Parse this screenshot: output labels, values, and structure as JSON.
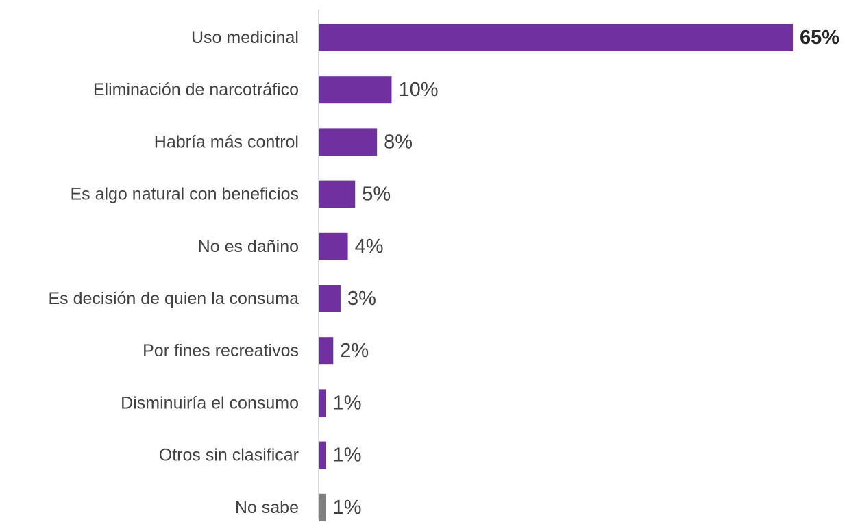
{
  "chart_data": {
    "type": "bar",
    "orientation": "horizontal",
    "categories": [
      "Uso medicinal",
      "Eliminación de narcotráfico",
      "Habría más control",
      "Es algo natural con beneficios",
      "No es dañino",
      "Es decisión de quien la consuma",
      "Por fines recreativos",
      "Disminuiría el consumo",
      "Otros sin clasificar",
      "No sabe"
    ],
    "values": [
      65,
      10,
      8,
      5,
      4,
      3,
      2,
      1,
      1,
      1
    ],
    "value_labels": [
      "65%",
      "10%",
      "8%",
      "5%",
      "4%",
      "3%",
      "2%",
      "1%",
      "1%",
      "1%"
    ],
    "bar_colors": [
      "#7030a0",
      "#7030a0",
      "#7030a0",
      "#7030a0",
      "#7030a0",
      "#7030a0",
      "#7030a0",
      "#7030a0",
      "#7030a0",
      "#808080"
    ],
    "bold_value_labels": [
      true,
      false,
      false,
      false,
      false,
      false,
      false,
      false,
      false,
      false
    ],
    "xlim": [
      0,
      65
    ],
    "grid": false,
    "legend": "none",
    "title": "",
    "xlabel": "",
    "ylabel": ""
  }
}
